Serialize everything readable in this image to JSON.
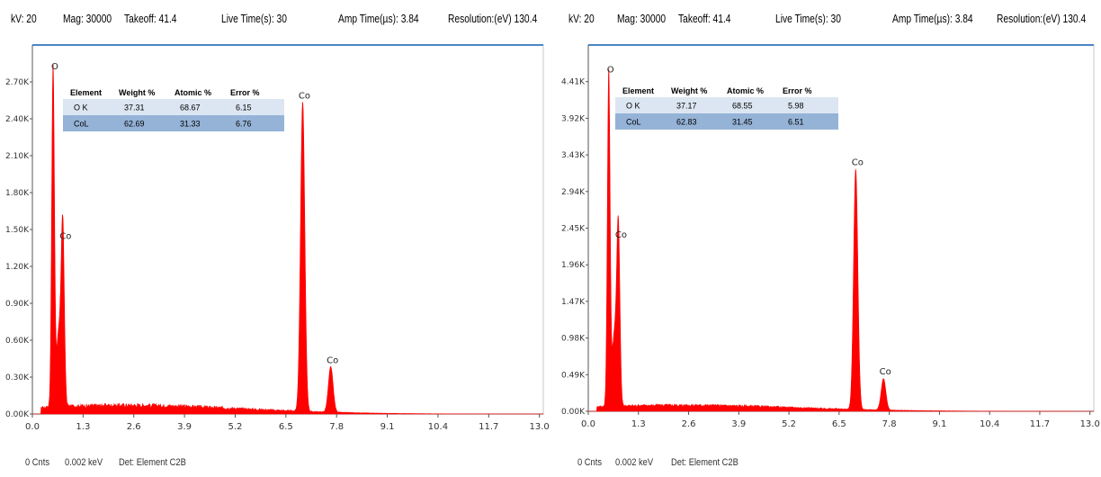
{
  "panels": [
    {
      "header": {
        "kv": "kV: 20",
        "mag": "Mag: 30000",
        "takeoff": "Takeoff: 41.4",
        "live": "Live Time(s): 30",
        "amp": "Amp Time(µs): 3.84",
        "res": "Resolution:(eV) 130.4"
      },
      "footer": {
        "cnts": "0 Cnts",
        "kev": "0.002 keV",
        "det": "Det: Element C2B"
      },
      "table": {
        "headers": [
          "Element",
          "Weight %",
          "Atomic %",
          "Error %"
        ],
        "rows": [
          [
            "O K",
            "37.31",
            "68.67",
            "6.15"
          ],
          [
            "CoL",
            "62.69",
            "31.33",
            "6.76"
          ]
        ]
      }
    },
    {
      "header": {
        "kv": "kV: 20",
        "mag": "Mag: 30000",
        "takeoff": "Takeoff: 41.4",
        "live": "Live Time(s): 30",
        "amp": "Amp Time(µs): 3.84",
        "res": "Resolution:(eV) 130.4"
      },
      "footer": {
        "cnts": "0 Cnts",
        "kev": "0.002 keV",
        "det": "Det: Element C2B"
      },
      "table": {
        "headers": [
          "Element",
          "Weight %",
          "Atomic %",
          "Error %"
        ],
        "rows": [
          [
            "O K",
            "37.17",
            "68.55",
            "5.98"
          ],
          [
            "CoL",
            "62.83",
            "31.45",
            "6.51"
          ]
        ]
      }
    }
  ],
  "chart_data": [
    {
      "type": "line",
      "xlim": [
        0,
        13.1
      ],
      "ylim": [
        0,
        3.0
      ],
      "x_ticks": [
        0.0,
        1.3,
        2.6,
        3.9,
        5.2,
        6.5,
        7.8,
        9.1,
        10.4,
        11.7,
        13.0
      ],
      "x_tick_labels": [
        "0.0",
        "1.3",
        "2.6",
        "3.9",
        "5.2",
        "6.5",
        "7.8",
        "9.1",
        "10.4",
        "11.7",
        "13.0"
      ],
      "y_ticks": [
        0,
        0.3,
        0.6,
        0.9,
        1.2,
        1.5,
        1.8,
        2.1,
        2.4,
        2.7
      ],
      "y_tick_labels": [
        "0.00K",
        "0.30K",
        "0.60K",
        "0.90K",
        "1.20K",
        "1.50K",
        "1.80K",
        "2.10K",
        "2.40K",
        "2.70K"
      ],
      "peaks": [
        {
          "label": "O",
          "energy_kev": 0.53,
          "counts_k": 2.76
        },
        {
          "label": "Co",
          "energy_kev": 0.78,
          "counts_k": 1.38
        },
        {
          "label": "Co",
          "energy_kev": 6.93,
          "counts_k": 2.52
        },
        {
          "label": "Co",
          "energy_kev": 7.65,
          "counts_k": 0.37
        }
      ],
      "background_counts_k": 0.07,
      "series_color": "#ff0000"
    },
    {
      "type": "line",
      "xlim": [
        0,
        13.1
      ],
      "ylim": [
        0,
        4.9
      ],
      "x_ticks": [
        0.0,
        1.3,
        2.6,
        3.9,
        5.2,
        6.5,
        7.8,
        9.1,
        10.4,
        11.7,
        13.0
      ],
      "x_tick_labels": [
        "0.0",
        "1.3",
        "2.6",
        "3.9",
        "5.2",
        "6.5",
        "7.8",
        "9.1",
        "10.4",
        "11.7",
        "13.0"
      ],
      "y_ticks": [
        0,
        0.49,
        0.98,
        1.47,
        1.96,
        2.45,
        2.94,
        3.43,
        3.92,
        4.41
      ],
      "y_tick_labels": [
        "0.00K",
        "0.49K",
        "0.98K",
        "1.47K",
        "1.96K",
        "2.45K",
        "2.94K",
        "3.43K",
        "3.92K",
        "4.41K"
      ],
      "peaks": [
        {
          "label": "O",
          "energy_kev": 0.53,
          "counts_k": 4.46
        },
        {
          "label": "Co",
          "energy_kev": 0.78,
          "counts_k": 2.25
        },
        {
          "label": "Co",
          "energy_kev": 6.93,
          "counts_k": 3.22
        },
        {
          "label": "Co",
          "energy_kev": 7.65,
          "counts_k": 0.42
        }
      ],
      "background_counts_k": 0.08,
      "series_color": "#ff0000"
    }
  ]
}
